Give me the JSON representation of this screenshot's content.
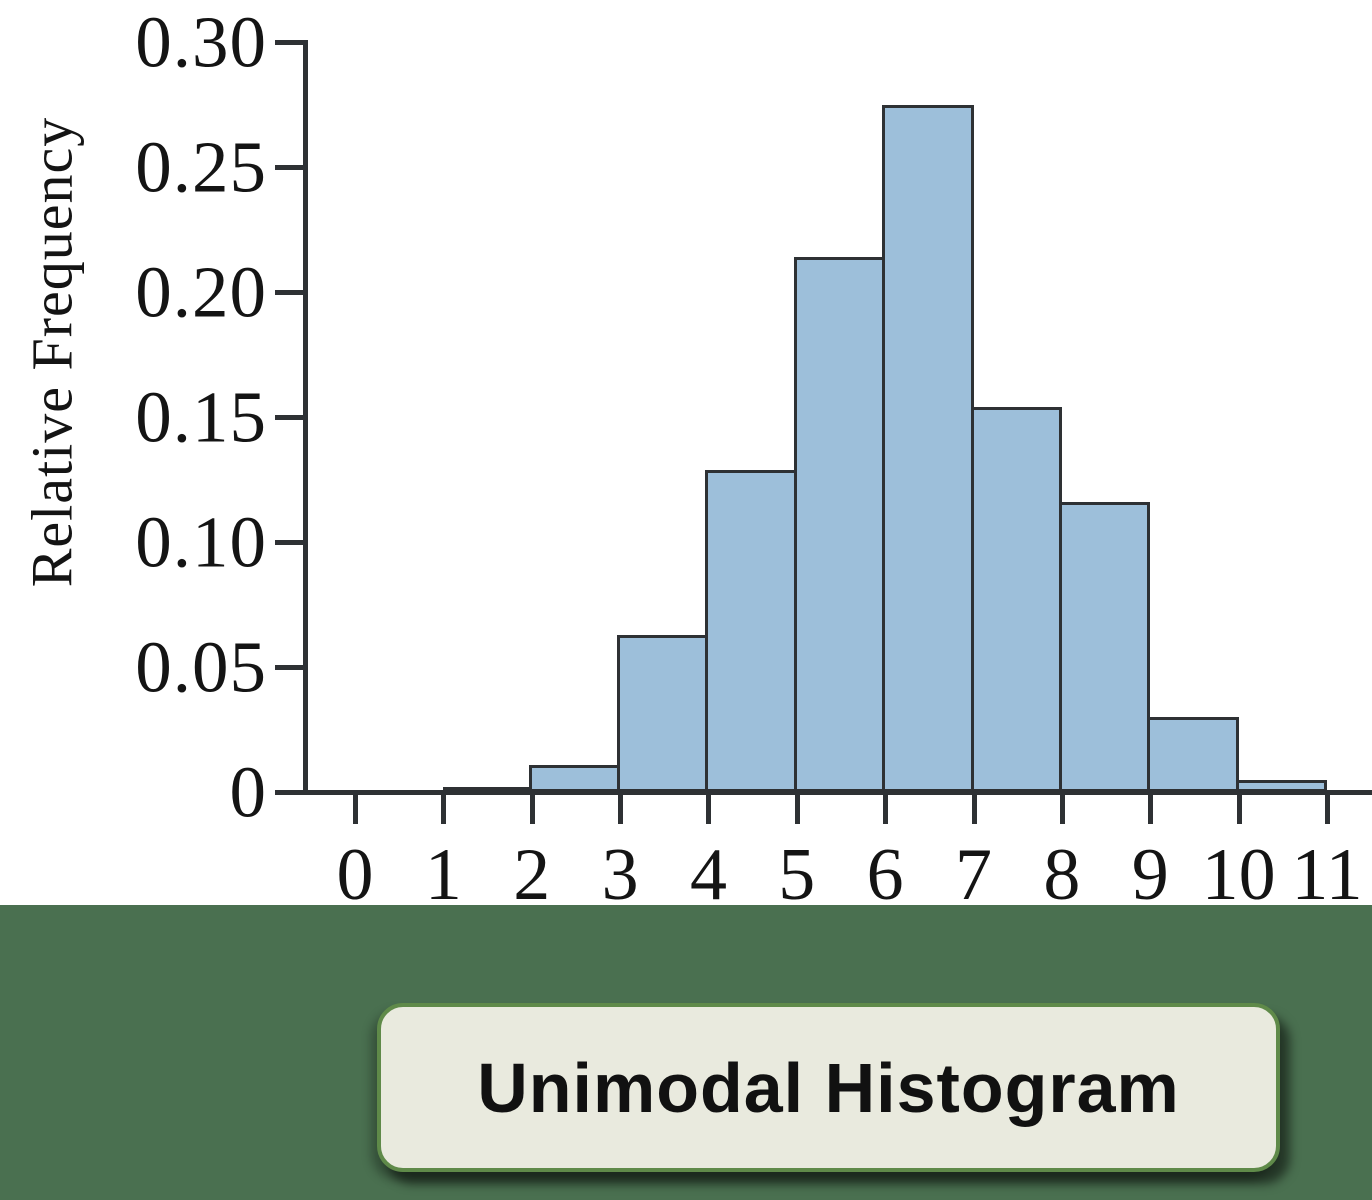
{
  "chart_data": {
    "type": "bar",
    "subtype": "histogram",
    "title": "Unimodal Histogram",
    "xlabel": "",
    "ylabel": "Relative Frequency",
    "bin_edges": [
      1,
      2,
      3,
      4,
      5,
      6,
      7,
      8,
      9,
      10,
      11
    ],
    "values": [
      0.002,
      0.011,
      0.063,
      0.129,
      0.214,
      0.275,
      0.154,
      0.116,
      0.03,
      0.005
    ],
    "x_ticks": [
      0,
      1,
      2,
      3,
      4,
      5,
      6,
      7,
      8,
      9,
      10,
      11
    ],
    "y_tick_values": [
      0,
      0.05,
      0.1,
      0.15,
      0.2,
      0.25,
      0.3
    ],
    "y_tick_labels": [
      "0",
      "0.05",
      "0.10",
      "0.15",
      "0.20",
      "0.25",
      "0.30"
    ],
    "xlim": [
      -0.6,
      11.5
    ],
    "ylim": [
      0,
      0.3
    ],
    "grid": false,
    "legend": null,
    "bar_fill_color": "#9dbfda",
    "bar_edge_color": "#2e3134",
    "axis_color": "#2e3134",
    "label_color": "#141414"
  },
  "caption_box": {
    "label": "Unimodal Histogram",
    "fill": "#e9eade",
    "border_color": "#5f8a49",
    "band_color": "#4a7050",
    "text_color": "#111111"
  }
}
